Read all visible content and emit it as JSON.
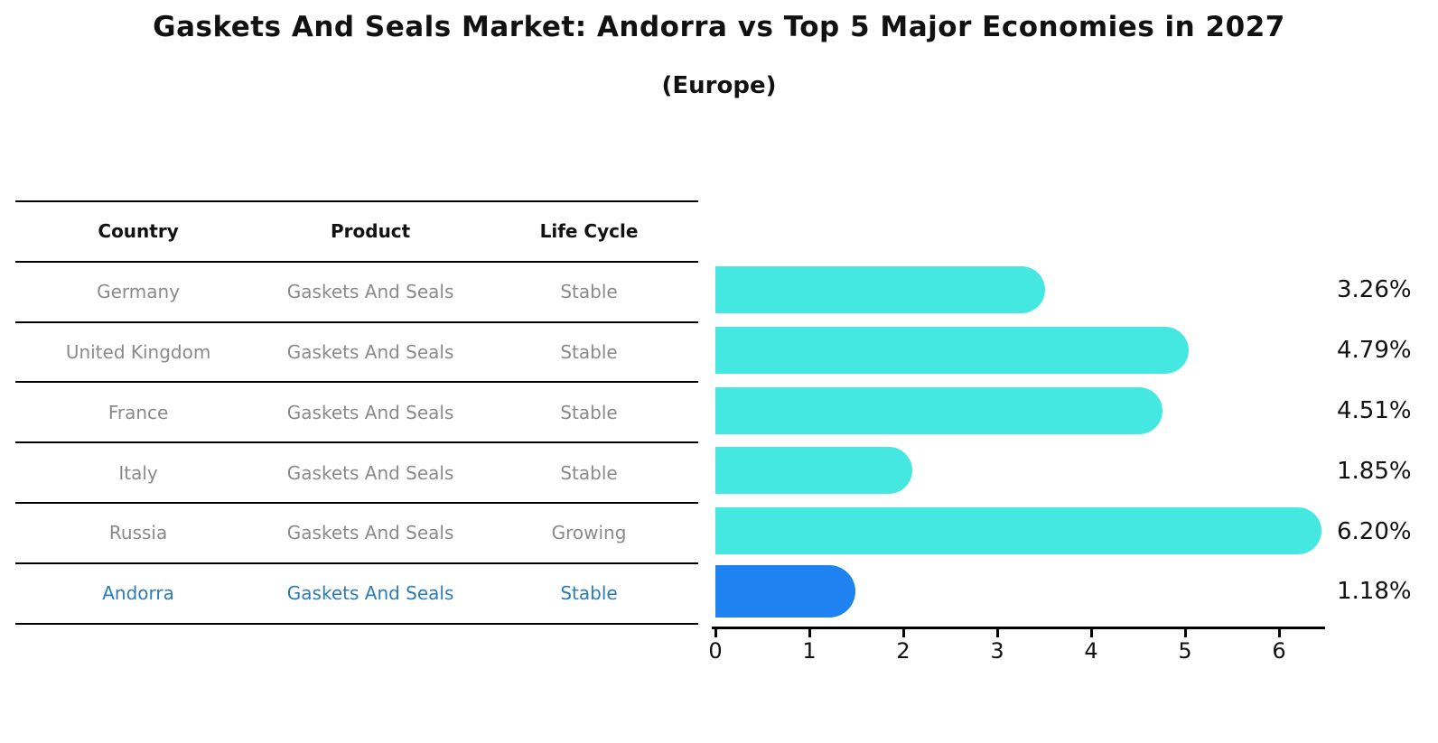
{
  "title": "Gaskets And Seals Market: Andorra vs Top 5 Major Economies in 2027",
  "subtitle": "(Europe)",
  "table": {
    "headers": [
      "Country",
      "Product",
      "Life Cycle"
    ],
    "rows": [
      {
        "country": "Germany",
        "product": "Gaskets And Seals",
        "life_cycle": "Stable",
        "highlight": false
      },
      {
        "country": "United Kingdom",
        "product": "Gaskets And Seals",
        "life_cycle": "Stable",
        "highlight": false
      },
      {
        "country": "France",
        "product": "Gaskets And Seals",
        "life_cycle": "Stable",
        "highlight": false
      },
      {
        "country": "Italy",
        "product": "Gaskets And Seals",
        "life_cycle": "Stable",
        "highlight": false
      },
      {
        "country": "Russia",
        "product": "Gaskets And Seals",
        "life_cycle": "Growing",
        "highlight": false
      },
      {
        "country": "Andorra",
        "product": "Gaskets And Seals",
        "life_cycle": "Stable",
        "highlight": true
      }
    ]
  },
  "chart_data": {
    "type": "bar",
    "orientation": "horizontal",
    "title": "Gaskets And Seals Market: Andorra vs Top 5 Major Economies in 2027 (Europe)",
    "categories": [
      "Germany",
      "United Kingdom",
      "France",
      "Italy",
      "Russia",
      "Andorra"
    ],
    "values": [
      3.26,
      4.79,
      4.51,
      1.85,
      6.2,
      1.18
    ],
    "value_labels": [
      "3.26%",
      "4.79%",
      "4.51%",
      "1.85%",
      "6.20%",
      "1.18%"
    ],
    "x_ticks": [
      0,
      1,
      2,
      3,
      4,
      5,
      6
    ],
    "xlim": [
      0,
      6.5
    ],
    "grid": false,
    "bar_color": "#45e8e1",
    "highlight_color": "#1e82f0",
    "highlight_index": 5,
    "highlight_text_color": "#2b7bba"
  }
}
